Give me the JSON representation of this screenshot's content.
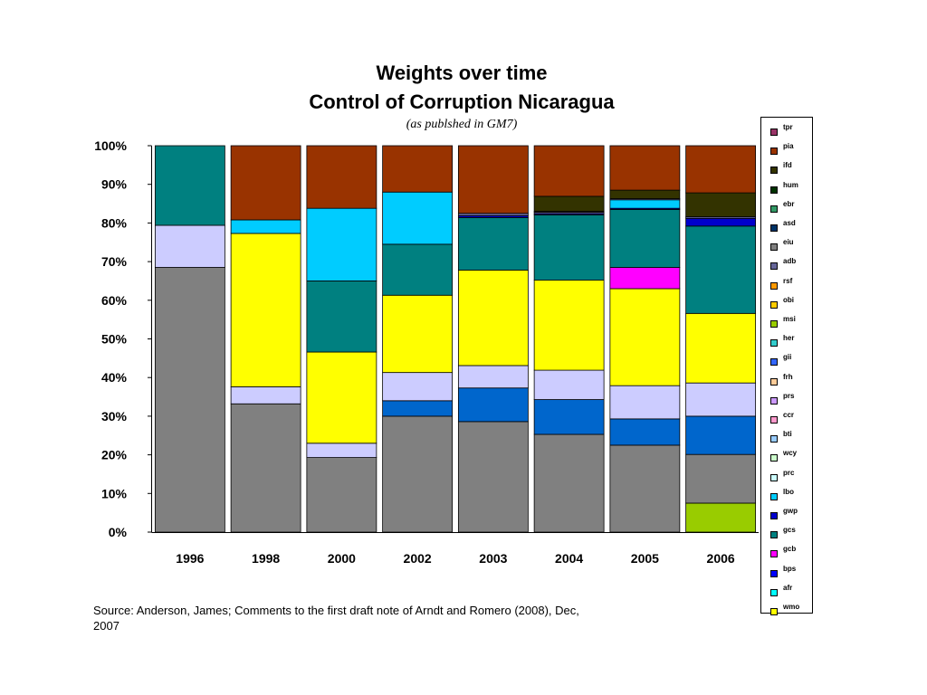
{
  "page": {
    "title_line1": "Weights over time",
    "title_line2": "Control of Corruption Nicaragua",
    "subtitle": "(as publshed in GM7)",
    "source": "Source: Anderson, James; Comments to the first draft note of Arndt and Romero (2008), Dec, 2007"
  },
  "chart_data": {
    "type": "bar",
    "stacked": true,
    "normalized": true,
    "title": "Weights over time",
    "subtitle": "Control of Corruption Nicaragua",
    "categories": [
      "1996",
      "1998",
      "2000",
      "2002",
      "2003",
      "2004",
      "2005",
      "2006"
    ],
    "ylim": [
      0,
      100
    ],
    "yticks": [
      "0%",
      "10%",
      "20%",
      "30%",
      "40%",
      "50%",
      "60%",
      "70%",
      "80%",
      "90%",
      "100%"
    ],
    "ytick_values": [
      0,
      10,
      20,
      30,
      40,
      50,
      60,
      70,
      80,
      90,
      100
    ],
    "grid": false,
    "legend_position": "right",
    "series": [
      {
        "name": "msi",
        "color": "#99CC00",
        "values": [
          0,
          0,
          0,
          0,
          0,
          0,
          0,
          7.5
        ]
      },
      {
        "name": "eiu",
        "color": "#808080",
        "values": [
          68.5,
          33.2,
          19.3,
          30.0,
          28.6,
          25.3,
          22.5,
          12.6
        ]
      },
      {
        "name": "gii",
        "color": "#0066CC",
        "values": [
          0,
          0,
          0,
          4.0,
          8.7,
          9.0,
          6.8,
          9.9
        ]
      },
      {
        "name": "prs",
        "color": "#CCCCFF",
        "values": [
          10.9,
          4.4,
          3.7,
          7.3,
          5.8,
          7.6,
          8.6,
          8.6
        ]
      },
      {
        "name": "wmo",
        "color": "#FFFF00",
        "values": [
          0,
          39.7,
          23.6,
          20.0,
          24.7,
          23.3,
          25.1,
          18.0
        ]
      },
      {
        "name": "gcb",
        "color": "#FF00FF",
        "values": [
          0,
          0,
          0,
          0,
          0,
          0,
          5.5,
          0
        ]
      },
      {
        "name": "gcs",
        "color": "#008080",
        "values": [
          20.6,
          0,
          18.4,
          13.2,
          13.6,
          16.9,
          15.0,
          22.6
        ]
      },
      {
        "name": "gwp",
        "color": "#0000CC",
        "values": [
          0,
          0,
          0,
          0,
          0.5,
          0.3,
          0.3,
          2.0
        ]
      },
      {
        "name": "afr",
        "color": "#00CCFF",
        "values": [
          0,
          3.5,
          18.8,
          13.5,
          0,
          0,
          2.2,
          0
        ]
      },
      {
        "name": "adb",
        "color": "#666699",
        "values": [
          0,
          0,
          0,
          0,
          0.6,
          0.4,
          0.3,
          0.4
        ]
      },
      {
        "name": "ccr",
        "color": "#FF99CC",
        "values": [
          0,
          0,
          0,
          0,
          0,
          0.2,
          0,
          0
        ]
      },
      {
        "name": "ifd",
        "color": "#333300",
        "values": [
          0,
          0,
          0,
          0,
          0,
          3.9,
          2.2,
          6.2
        ]
      },
      {
        "name": "pia",
        "color": "#993300",
        "values": [
          0,
          19.2,
          16.2,
          12.0,
          17.5,
          13.1,
          11.5,
          12.2
        ]
      }
    ],
    "legend": [
      {
        "name": "tpr",
        "color": "#993366"
      },
      {
        "name": "pia",
        "color": "#993300"
      },
      {
        "name": "ifd",
        "color": "#333300"
      },
      {
        "name": "hum",
        "color": "#003300"
      },
      {
        "name": "ebr",
        "color": "#339966"
      },
      {
        "name": "asd",
        "color": "#003366"
      },
      {
        "name": "eiu",
        "color": "#808080"
      },
      {
        "name": "adb",
        "color": "#666699"
      },
      {
        "name": "rsf",
        "color": "#FF9900"
      },
      {
        "name": "obi",
        "color": "#FFCC00"
      },
      {
        "name": "msi",
        "color": "#99CC00"
      },
      {
        "name": "her",
        "color": "#33CCCC"
      },
      {
        "name": "gii",
        "color": "#3366FF"
      },
      {
        "name": "frh",
        "color": "#FFCC99"
      },
      {
        "name": "prs",
        "color": "#CC99FF"
      },
      {
        "name": "ccr",
        "color": "#FF99CC"
      },
      {
        "name": "bti",
        "color": "#99CCFF"
      },
      {
        "name": "wcy",
        "color": "#CCFFCC"
      },
      {
        "name": "prc",
        "color": "#CCFFFF"
      },
      {
        "name": "lbo",
        "color": "#00CCFF"
      },
      {
        "name": "gwp",
        "color": "#0000CC"
      },
      {
        "name": "gcs",
        "color": "#008080"
      },
      {
        "name": "gcb",
        "color": "#FF00FF"
      },
      {
        "name": "bps",
        "color": "#0000FF"
      },
      {
        "name": "afr",
        "color": "#00FFFF"
      },
      {
        "name": "wmo",
        "color": "#FFFF00"
      }
    ]
  }
}
